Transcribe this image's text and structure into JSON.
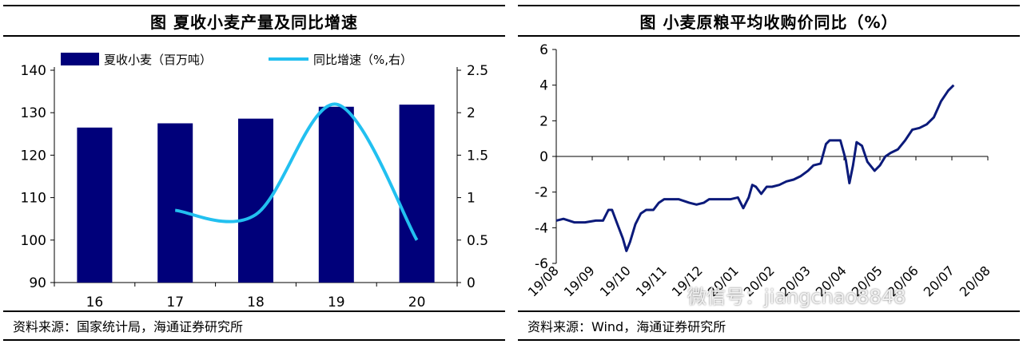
{
  "left": {
    "title": "图  夏收小麦产量及同比增速",
    "source": "资料来源：国家统计局，海通证券研究所",
    "colors": {
      "bar": "#00007a",
      "line": "#22c0f0"
    },
    "chart_data": {
      "type": "bar",
      "categories": [
        "16",
        "17",
        "18",
        "19",
        "20"
      ],
      "series": [
        {
          "name": "夏收小麦（百万吨）",
          "type": "bar",
          "axis": "left",
          "values": [
            126.5,
            127.5,
            128.6,
            131.4,
            131.9
          ]
        },
        {
          "name": "同比增速（%,右）",
          "type": "line",
          "axis": "right",
          "values": [
            null,
            0.85,
            0.8,
            2.1,
            0.5
          ]
        }
      ],
      "ylim": [
        90,
        140
      ],
      "yticks": [
        "90",
        "100",
        "110",
        "120",
        "130",
        "140"
      ],
      "y2lim": [
        0,
        2.5
      ],
      "y2ticks": [
        "0",
        "0.5",
        "1",
        "1.5",
        "2",
        "2.5"
      ],
      "legend": "top"
    }
  },
  "right": {
    "title": "图  小麦原粮平均收购价同比（%）",
    "source": "资料来源：Wind，海通证券研究所",
    "colors": {
      "line": "#0b1a7a"
    },
    "chart_data": {
      "type": "line",
      "xticks": [
        "19/08",
        "19/09",
        "19/10",
        "19/11",
        "19/12",
        "20/01",
        "20/02",
        "20/03",
        "20/04",
        "20/05",
        "20/06",
        "20/07",
        "20/08"
      ],
      "ylim": [
        -6,
        6
      ],
      "yticks": [
        "-6",
        "-4",
        "-2",
        "0",
        "2",
        "4",
        "6"
      ],
      "series": [
        {
          "values": [
            [
              0,
              -3.6
            ],
            [
              0.2,
              -3.5
            ],
            [
              0.5,
              -3.7
            ],
            [
              0.8,
              -3.7
            ],
            [
              1.1,
              -3.6
            ],
            [
              1.3,
              -3.6
            ],
            [
              1.45,
              -3.0
            ],
            [
              1.55,
              -3.0
            ],
            [
              1.7,
              -3.8
            ],
            [
              1.85,
              -4.6
            ],
            [
              1.95,
              -5.3
            ],
            [
              2.05,
              -4.8
            ],
            [
              2.2,
              -3.8
            ],
            [
              2.35,
              -3.2
            ],
            [
              2.5,
              -3.0
            ],
            [
              2.7,
              -3.0
            ],
            [
              2.85,
              -2.6
            ],
            [
              3.0,
              -2.4
            ],
            [
              3.2,
              -2.4
            ],
            [
              3.4,
              -2.4
            ],
            [
              3.55,
              -2.5
            ],
            [
              3.7,
              -2.6
            ],
            [
              3.9,
              -2.7
            ],
            [
              4.1,
              -2.6
            ],
            [
              4.25,
              -2.4
            ],
            [
              4.45,
              -2.4
            ],
            [
              4.65,
              -2.4
            ],
            [
              4.85,
              -2.4
            ],
            [
              5.05,
              -2.3
            ],
            [
              5.2,
              -2.9
            ],
            [
              5.35,
              -2.3
            ],
            [
              5.45,
              -1.6
            ],
            [
              5.55,
              -1.7
            ],
            [
              5.7,
              -2.1
            ],
            [
              5.85,
              -1.7
            ],
            [
              6.0,
              -1.7
            ],
            [
              6.2,
              -1.6
            ],
            [
              6.4,
              -1.4
            ],
            [
              6.6,
              -1.3
            ],
            [
              6.8,
              -1.1
            ],
            [
              7.0,
              -0.8
            ],
            [
              7.15,
              -0.5
            ],
            [
              7.35,
              -0.4
            ],
            [
              7.5,
              0.7
            ],
            [
              7.6,
              0.9
            ],
            [
              7.75,
              0.9
            ],
            [
              7.9,
              0.9
            ],
            [
              8.05,
              -0.2
            ],
            [
              8.15,
              -1.5
            ],
            [
              8.25,
              -0.5
            ],
            [
              8.35,
              0.8
            ],
            [
              8.5,
              0.6
            ],
            [
              8.65,
              -0.3
            ],
            [
              8.85,
              -0.8
            ],
            [
              9.0,
              -0.5
            ],
            [
              9.15,
              0.0
            ],
            [
              9.3,
              0.2
            ],
            [
              9.5,
              0.4
            ],
            [
              9.7,
              0.9
            ],
            [
              9.9,
              1.5
            ],
            [
              10.1,
              1.6
            ],
            [
              10.3,
              1.8
            ],
            [
              10.5,
              2.2
            ],
            [
              10.7,
              3.1
            ],
            [
              10.9,
              3.7
            ],
            [
              11.05,
              4.0
            ]
          ]
        }
      ]
    }
  },
  "watermark": "微信号：jiangchao8848"
}
